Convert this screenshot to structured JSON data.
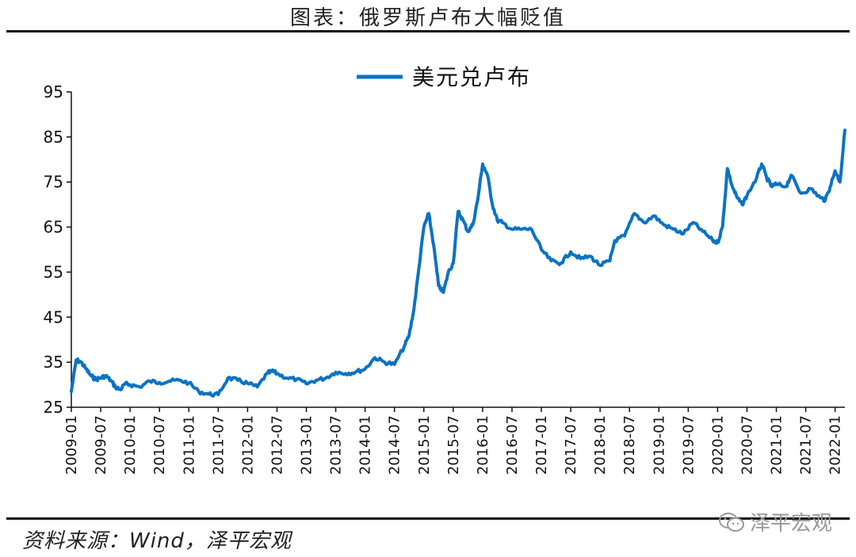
{
  "title": "图表：俄罗斯卢布大幅贬值",
  "source": "资料来源：Wind，泽平宏观",
  "watermark": "泽平宏观",
  "chart_data": {
    "type": "line",
    "legend_position": "top",
    "ylim": [
      25,
      95
    ],
    "yticks": [
      25,
      35,
      45,
      55,
      65,
      75,
      85,
      95
    ],
    "xlim": [
      "2009-01",
      "2022-03"
    ],
    "xticks": [
      "2009-01",
      "2009-07",
      "2010-01",
      "2010-07",
      "2011-01",
      "2011-07",
      "2012-01",
      "2012-07",
      "2013-01",
      "2013-07",
      "2014-01",
      "2014-07",
      "2015-01",
      "2015-07",
      "2016-01",
      "2016-07",
      "2017-01",
      "2017-07",
      "2018-01",
      "2018-07",
      "2019-01",
      "2019-07",
      "2020-01",
      "2020-07",
      "2021-01",
      "2021-07",
      "2022-01"
    ],
    "series": [
      {
        "name": "美元兑卢布",
        "color": "#0b73c2",
        "points": [
          [
            "2009-01",
            28.5
          ],
          [
            "2009-02",
            35.5
          ],
          [
            "2009-03",
            35.0
          ],
          [
            "2009-04",
            33.5
          ],
          [
            "2009-05",
            32.0
          ],
          [
            "2009-06",
            31.2
          ],
          [
            "2009-07",
            31.5
          ],
          [
            "2009-08",
            32.0
          ],
          [
            "2009-09",
            31.0
          ],
          [
            "2009-10",
            29.5
          ],
          [
            "2009-11",
            28.9
          ],
          [
            "2009-12",
            30.2
          ],
          [
            "2010-01",
            30.0
          ],
          [
            "2010-03",
            29.5
          ],
          [
            "2010-05",
            30.8
          ],
          [
            "2010-07",
            30.5
          ],
          [
            "2010-09",
            30.8
          ],
          [
            "2010-11",
            31.0
          ],
          [
            "2011-01",
            30.4
          ],
          [
            "2011-03",
            28.5
          ],
          [
            "2011-05",
            27.9
          ],
          [
            "2011-07",
            27.8
          ],
          [
            "2011-09",
            31.5
          ],
          [
            "2011-11",
            31.0
          ],
          [
            "2012-01",
            30.3
          ],
          [
            "2012-03",
            29.5
          ],
          [
            "2012-05",
            32.5
          ],
          [
            "2012-06",
            33.0
          ],
          [
            "2012-07",
            32.5
          ],
          [
            "2012-09",
            31.5
          ],
          [
            "2012-11",
            31.2
          ],
          [
            "2013-01",
            30.2
          ],
          [
            "2013-03",
            31.0
          ],
          [
            "2013-05",
            31.5
          ],
          [
            "2013-07",
            32.8
          ],
          [
            "2013-09",
            32.5
          ],
          [
            "2013-11",
            32.8
          ],
          [
            "2014-01",
            33.5
          ],
          [
            "2014-03",
            36.0
          ],
          [
            "2014-05",
            35.0
          ],
          [
            "2014-07",
            34.5
          ],
          [
            "2014-09",
            38.5
          ],
          [
            "2014-10",
            41.0
          ],
          [
            "2014-11",
            47.0
          ],
          [
            "2014-12",
            56.0
          ],
          [
            "2015-01",
            65.0
          ],
          [
            "2015-02",
            68.0
          ],
          [
            "2015-03",
            61.0
          ],
          [
            "2015-04",
            52.0
          ],
          [
            "2015-05",
            50.5
          ],
          [
            "2015-06",
            55.0
          ],
          [
            "2015-07",
            57.0
          ],
          [
            "2015-08",
            68.5
          ],
          [
            "2015-09",
            66.5
          ],
          [
            "2015-10",
            64.0
          ],
          [
            "2015-11",
            65.5
          ],
          [
            "2015-12",
            71.0
          ],
          [
            "2016-01",
            79.0
          ],
          [
            "2016-02",
            76.5
          ],
          [
            "2016-03",
            70.0
          ],
          [
            "2016-04",
            66.5
          ],
          [
            "2016-05",
            66.0
          ],
          [
            "2016-07",
            64.5
          ],
          [
            "2016-09",
            64.5
          ],
          [
            "2016-11",
            64.5
          ],
          [
            "2017-01",
            60.0
          ],
          [
            "2017-03",
            57.5
          ],
          [
            "2017-05",
            57.0
          ],
          [
            "2017-07",
            59.5
          ],
          [
            "2017-09",
            58.0
          ],
          [
            "2017-11",
            58.5
          ],
          [
            "2018-01",
            56.5
          ],
          [
            "2018-03",
            57.5
          ],
          [
            "2018-04",
            62.0
          ],
          [
            "2018-06",
            63.0
          ],
          [
            "2018-08",
            68.0
          ],
          [
            "2018-10",
            66.0
          ],
          [
            "2018-12",
            67.5
          ],
          [
            "2019-02",
            65.5
          ],
          [
            "2019-04",
            64.5
          ],
          [
            "2019-06",
            63.5
          ],
          [
            "2019-08",
            66.0
          ],
          [
            "2019-10",
            64.0
          ],
          [
            "2019-12",
            62.0
          ],
          [
            "2020-01",
            61.5
          ],
          [
            "2020-02",
            65.0
          ],
          [
            "2020-03",
            78.0
          ],
          [
            "2020-04",
            74.0
          ],
          [
            "2020-05",
            71.5
          ],
          [
            "2020-06",
            70.0
          ],
          [
            "2020-07",
            72.0
          ],
          [
            "2020-09",
            76.0
          ],
          [
            "2020-10",
            79.0
          ],
          [
            "2020-11",
            76.0
          ],
          [
            "2020-12",
            74.0
          ],
          [
            "2021-01",
            74.5
          ],
          [
            "2021-03",
            74.0
          ],
          [
            "2021-04",
            76.5
          ],
          [
            "2021-06",
            72.5
          ],
          [
            "2021-08",
            73.5
          ],
          [
            "2021-10",
            71.5
          ],
          [
            "2021-11",
            71.0
          ],
          [
            "2021-12",
            74.0
          ],
          [
            "2022-01",
            77.5
          ],
          [
            "2022-02",
            75.0
          ],
          [
            "2022-03",
            86.5
          ]
        ]
      }
    ]
  }
}
